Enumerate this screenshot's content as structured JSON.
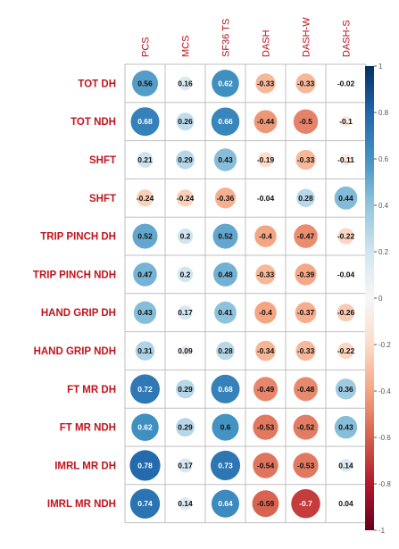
{
  "chart_data": {
    "type": "heatmap",
    "columns": [
      "PCS",
      "MCS",
      "SF36 TS",
      "DASH",
      "DASH-W",
      "DASH-S"
    ],
    "rows": [
      "TOT DH",
      "TOT NDH",
      "SHFT",
      "SHFT",
      "TRIP PINCH DH",
      "TRIP PINCH NDH",
      "HAND GRIP DH",
      "HAND GRIP NDH",
      "FT MR DH",
      "FT MR NDH",
      "IMRL MR DH",
      "IMRL MR NDH"
    ],
    "values": [
      [
        0.56,
        0.16,
        0.62,
        -0.33,
        -0.33,
        -0.02
      ],
      [
        0.68,
        0.26,
        0.66,
        -0.44,
        -0.5,
        -0.1
      ],
      [
        0.21,
        0.29,
        0.43,
        -0.19,
        -0.33,
        -0.11
      ],
      [
        -0.24,
        -0.24,
        -0.36,
        -0.04,
        0.28,
        0.44
      ],
      [
        0.52,
        0.2,
        0.52,
        -0.4,
        -0.47,
        -0.22
      ],
      [
        0.47,
        0.2,
        0.48,
        -0.33,
        -0.39,
        -0.04
      ],
      [
        0.43,
        0.17,
        0.41,
        -0.4,
        -0.37,
        -0.26
      ],
      [
        0.31,
        0.09,
        0.28,
        -0.34,
        -0.33,
        -0.22
      ],
      [
        0.72,
        0.29,
        0.68,
        -0.49,
        -0.48,
        0.36
      ],
      [
        0.62,
        0.29,
        0.6,
        -0.53,
        -0.52,
        0.43
      ],
      [
        0.78,
        0.17,
        0.73,
        -0.54,
        -0.53,
        0.14
      ],
      [
        0.74,
        0.14,
        0.64,
        -0.59,
        -0.7,
        0.04
      ]
    ],
    "value_labels": [
      [
        "0.56",
        "0.16",
        "0.62",
        "-0.33",
        "-0.33",
        "-0.02"
      ],
      [
        "0.68",
        "0.26",
        "0.66",
        "-0.44",
        "-0.5",
        "-0.1"
      ],
      [
        "0.21",
        "0.29",
        "0.43",
        "-0.19",
        "-0.33",
        "-0.11"
      ],
      [
        "-0.24",
        "-0.24",
        "-0.36",
        "-0.04",
        "0.28",
        "0.44"
      ],
      [
        "0.52",
        "0.2",
        "0.52",
        "-0.4",
        "-0.47",
        "-0.22"
      ],
      [
        "0.47",
        "0.2",
        "0.48",
        "-0.33",
        "-0.39",
        "-0.04"
      ],
      [
        "0.43",
        "0.17",
        "0.41",
        "-0.4",
        "-0.37",
        "-0.26"
      ],
      [
        "0.31",
        "0.09",
        "0.28",
        "-0.34",
        "-0.33",
        "-0.22"
      ],
      [
        "0.72",
        "0.29",
        "0.68",
        "-0.49",
        "-0.48",
        "0.36"
      ],
      [
        "0.62",
        "0.29",
        "0.6",
        "-0.53",
        "-0.52",
        "0.43"
      ],
      [
        "0.78",
        "0.17",
        "0.73",
        "-0.54",
        "-0.53",
        "0.14"
      ],
      [
        "0.74",
        "0.14",
        "0.64",
        "-0.59",
        "-0.7",
        "0.04"
      ]
    ],
    "colorbar": {
      "range": [
        -1,
        1
      ],
      "ticks": [
        1,
        0.8,
        0.6,
        0.4,
        0.2,
        0,
        -0.2,
        -0.4,
        -0.6,
        -0.8,
        -1
      ],
      "tick_labels": [
        "1",
        "0.8",
        "0.6",
        "0.4",
        "0.2",
        "0",
        "-0.2",
        "-0.4",
        "-0.6",
        "-0.8",
        "-1"
      ]
    },
    "colors": {
      "negative_end": "#67001f",
      "negative_mid": "#d6604d",
      "negative_light": "#f4a582",
      "neutral": "#f7f7f7",
      "positive_light": "#92c5de",
      "positive_mid": "#4393c3",
      "positive_end": "#053061",
      "grid": "#bfbfbf",
      "label": "#c0141c"
    },
    "grid": true,
    "legend": "right"
  }
}
